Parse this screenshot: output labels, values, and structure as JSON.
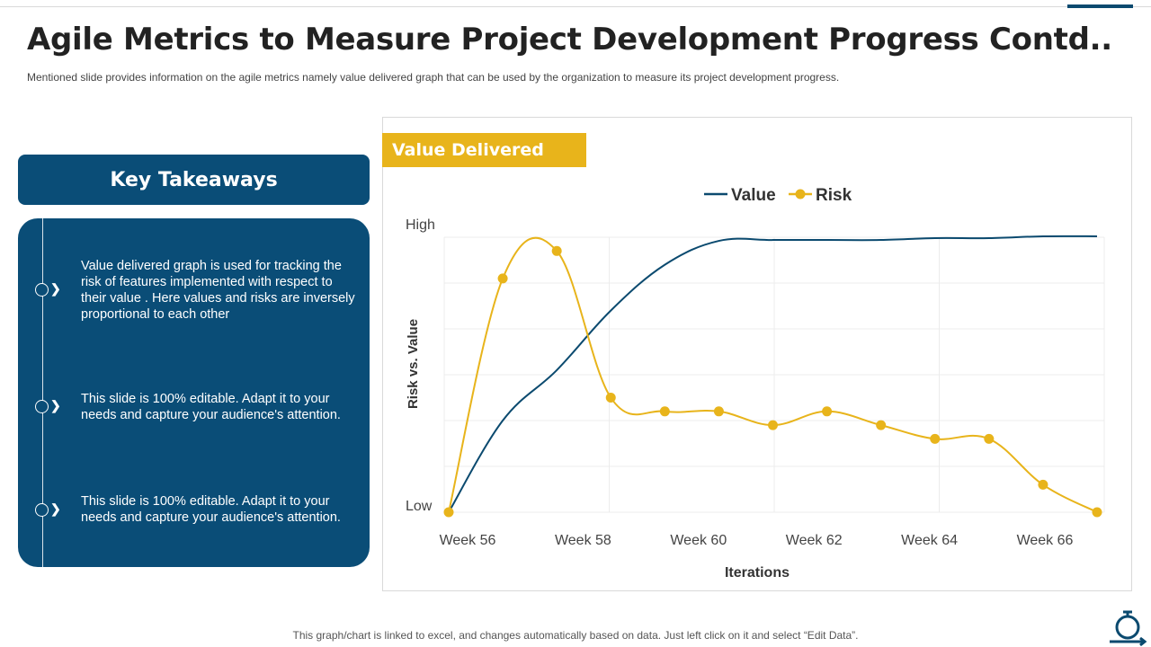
{
  "title": "Agile Metrics to Measure Project Development Progress Contd..",
  "subtitle": "Mentioned slide provides  information  on the agile metrics namely value delivered  graph that can be used by the organization to measure its project development  progress.",
  "takeaways": {
    "heading": "Key Takeaways",
    "items": [
      "Value delivered graph is used for tracking the risk of features implemented with respect to their value . Here values and risks are inversely proportional to each other",
      "This slide is 100% editable. Adapt it to your needs and capture your audience's attention.",
      "This slide is 100% editable. Adapt it to your needs and capture your audience's attention."
    ]
  },
  "chart_header": "Value Delivered",
  "footer": "This graph/chart is linked to excel, and changes automatically based on data. Just left click on it and select “Edit Data”.",
  "icons": [
    "stopwatch-loop-icon",
    "chevron-right-icon"
  ],
  "colors": {
    "primary": "#0a4d77",
    "accent": "#e8b41b"
  },
  "chart_data": {
    "type": "line",
    "xlabel": "Iterations",
    "ylabel": "Risk vs. Value",
    "ytick_labels": {
      "top": "High",
      "bottom": "Low"
    },
    "ylim": [
      0,
      6
    ],
    "x_tick_labels": [
      "Week 56",
      "Week 58",
      "Week 60",
      "Week 62",
      "Week 64",
      "Week 66"
    ],
    "grid": true,
    "legend": "top-center",
    "series": [
      {
        "name": "Value",
        "color": "#0b4a6f",
        "markers": false,
        "values": [
          0,
          2.0,
          3.1,
          4.4,
          5.4,
          5.92,
          5.94,
          5.94,
          5.94,
          5.98,
          5.98,
          6.02,
          6.02
        ]
      },
      {
        "name": "Risk",
        "color": "#e8b41b",
        "markers": true,
        "values": [
          0,
          5.1,
          5.7,
          2.5,
          2.2,
          2.2,
          1.9,
          2.2,
          1.9,
          1.6,
          1.6,
          0.6,
          0
        ]
      }
    ]
  }
}
